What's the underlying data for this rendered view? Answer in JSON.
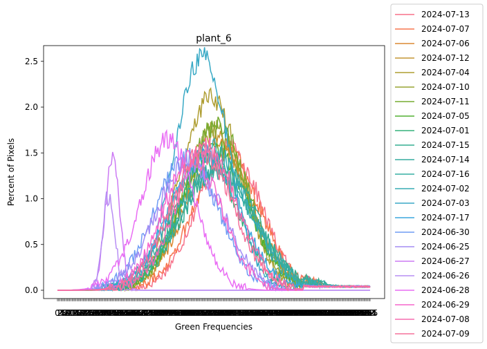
{
  "chart_data": {
    "type": "line",
    "title": "plant_6",
    "xlabel": "Green Frequencies",
    "ylabel": "Percent of Pixels",
    "xlim": [
      0,
      255
    ],
    "ylim": [
      -0.1,
      2.65
    ],
    "yticks": [
      0.0,
      0.5,
      1.0,
      1.5,
      2.0,
      2.5
    ],
    "ytick_labels": [
      "0.0",
      "0.5",
      "1.0",
      "1.5",
      "2.0",
      "2.5"
    ],
    "x_tick_note": "ticks at every integer 0-255, labels overlap",
    "x_tick_labels_readable": [
      "0",
      "255"
    ],
    "grid": false,
    "legend_position": "right-outside",
    "series": [
      {
        "name": "2024-07-13",
        "color": "#f77189",
        "peak_x": 140,
        "peak_y": 1.55,
        "width": 26
      },
      {
        "name": "2024-07-07",
        "color": "#f7754f",
        "peak_x": 138,
        "peak_y": 1.5,
        "width": 27
      },
      {
        "name": "2024-07-06",
        "color": "#dc8932",
        "peak_x": 132,
        "peak_y": 1.55,
        "width": 27
      },
      {
        "name": "2024-07-12",
        "color": "#c39532",
        "peak_x": 130,
        "peak_y": 1.7,
        "width": 26
      },
      {
        "name": "2024-07-04",
        "color": "#ae9d31",
        "peak_x": 125,
        "peak_y": 2.1,
        "width": 25
      },
      {
        "name": "2024-07-10",
        "color": "#97a431",
        "peak_x": 128,
        "peak_y": 1.75,
        "width": 26
      },
      {
        "name": "2024-07-11",
        "color": "#77ab31",
        "peak_x": 130,
        "peak_y": 1.8,
        "width": 26
      },
      {
        "name": "2024-07-05",
        "color": "#50b131",
        "peak_x": 128,
        "peak_y": 1.55,
        "width": 27
      },
      {
        "name": "2024-07-01",
        "color": "#33b07a",
        "peak_x": 122,
        "peak_y": 1.45,
        "width": 25
      },
      {
        "name": "2024-07-15",
        "color": "#34ae91",
        "peak_x": 132,
        "peak_y": 1.35,
        "width": 30
      },
      {
        "name": "2024-07-14",
        "color": "#35ac9e",
        "peak_x": 130,
        "peak_y": 1.3,
        "width": 31
      },
      {
        "name": "2024-07-16",
        "color": "#36ada4",
        "peak_x": 128,
        "peak_y": 1.3,
        "width": 32
      },
      {
        "name": "2024-07-02",
        "color": "#37abb4",
        "peak_x": 125,
        "peak_y": 1.55,
        "width": 30
      },
      {
        "name": "2024-07-03",
        "color": "#38a9c5",
        "peak_x": 118,
        "peak_y": 2.55,
        "width": 22
      },
      {
        "name": "2024-07-17",
        "color": "#3aa6dd",
        "peak_x": 120,
        "peak_y": 1.5,
        "width": 28
      },
      {
        "name": "2024-06-30",
        "color": "#6e9bf4",
        "peak_x": 105,
        "peak_y": 1.45,
        "width": 26
      },
      {
        "name": "2024-06-25",
        "color": "#a48cf4",
        "peak_x": 108,
        "peak_y": 1.4,
        "width": 27
      },
      {
        "name": "2024-06-27",
        "color": "#cc7af4",
        "peak_x": 45,
        "peak_y": 1.42,
        "width": 6
      },
      {
        "name": "2024-06-26",
        "color": "#b78df4",
        "peak_x": 42,
        "peak_y": 1.05,
        "width": 5
      },
      {
        "name": "2024-06-28",
        "color": "#e96cf4",
        "peak_x": 90,
        "peak_y": 1.63,
        "width": 22
      },
      {
        "name": "2024-06-29",
        "color": "#f565cc",
        "peak_x": 110,
        "peak_y": 1.45,
        "width": 24
      },
      {
        "name": "2024-07-08",
        "color": "#f66bad",
        "peak_x": 122,
        "peak_y": 1.55,
        "width": 25
      },
      {
        "name": "2024-07-09",
        "color": "#f6709a",
        "peak_x": 118,
        "peak_y": 1.5,
        "width": 26
      }
    ]
  }
}
